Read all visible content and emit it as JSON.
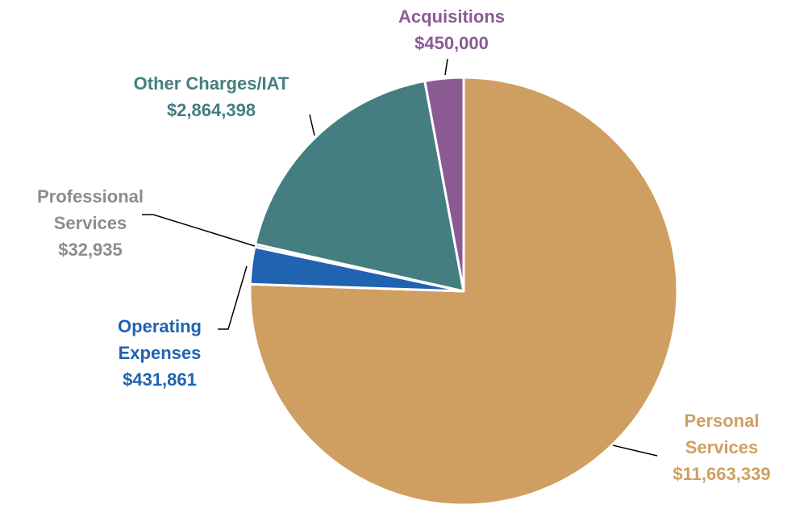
{
  "chart_data": {
    "type": "pie",
    "categories": [
      "Personal Services",
      "Operating Expenses",
      "Professional Services",
      "Other Charges/IAT",
      "Acquisitions"
    ],
    "values": [
      11663339,
      431861,
      32935,
      2864398,
      450000
    ],
    "value_labels": [
      "$11,663,339",
      "$431,861",
      "$32,935",
      "$2,864,398",
      "$450,000"
    ],
    "colors": [
      "#cf9f61",
      "#1f63b1",
      "#9a9a9a",
      "#457e80",
      "#8b5a93"
    ],
    "label_colors": [
      "#cf9f61",
      "#1f63b1",
      "#8c8c8c",
      "#457e80",
      "#8b5a93"
    ]
  }
}
